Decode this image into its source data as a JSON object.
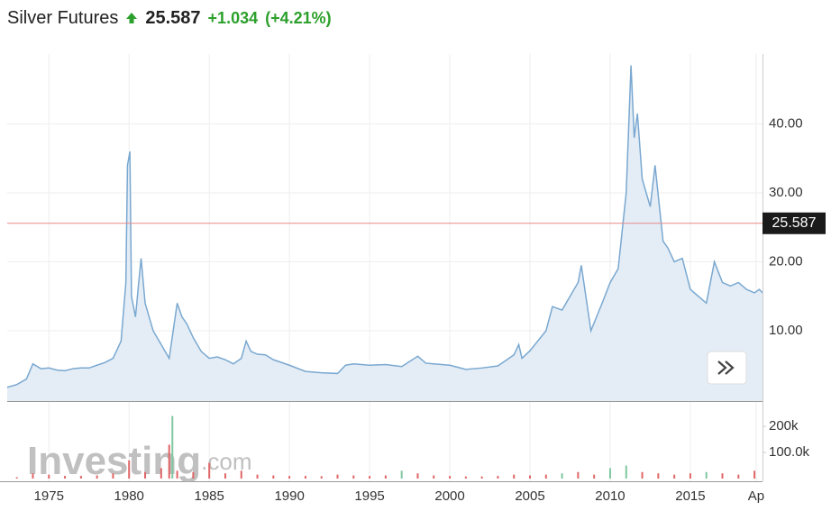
{
  "header": {
    "title": "Silver Futures",
    "price": "25.587",
    "change": "+1.034",
    "change_pct": "(+4.21%)"
  },
  "watermark": {
    "brand": "Investing",
    "suffix": ".com"
  },
  "chart_data": {
    "type": "area",
    "x": [
      1972.4,
      1973.0,
      1973.6,
      1974.0,
      1974.5,
      1975.0,
      1975.5,
      1976.0,
      1976.5,
      1977.0,
      1977.5,
      1978.0,
      1978.5,
      1979.0,
      1979.5,
      1979.8,
      1979.9,
      1980.05,
      1980.15,
      1980.4,
      1980.6,
      1980.75,
      1981.0,
      1981.5,
      1982.0,
      1982.5,
      1983.0,
      1983.3,
      1983.6,
      1984.0,
      1984.5,
      1985.0,
      1985.5,
      1986.0,
      1986.5,
      1987.0,
      1987.3,
      1987.6,
      1988.0,
      1988.5,
      1989.0,
      1990.0,
      1991.0,
      1992.0,
      1993.0,
      1993.5,
      1994.0,
      1995.0,
      1996.0,
      1997.0,
      1998.0,
      1998.5,
      1999.0,
      2000.0,
      2001.0,
      2002.0,
      2003.0,
      2004.0,
      2004.3,
      2004.5,
      2005.0,
      2006.0,
      2006.4,
      2007.0,
      2008.0,
      2008.2,
      2008.8,
      2009.5,
      2010.0,
      2010.5,
      2011.0,
      2011.3,
      2011.5,
      2011.7,
      2012.0,
      2012.5,
      2012.8,
      2013.3,
      2013.6,
      2014.0,
      2014.5,
      2015.0,
      2015.5,
      2016.0,
      2016.5,
      2017.0,
      2017.5,
      2018.0,
      2018.5,
      2019.0,
      2019.3,
      2019.5
    ],
    "values": [
      1.8,
      2.2,
      3.0,
      5.2,
      4.5,
      4.6,
      4.3,
      4.2,
      4.5,
      4.6,
      4.6,
      5.0,
      5.4,
      6.0,
      8.5,
      17,
      34,
      36,
      15,
      12,
      17,
      20.5,
      14,
      10,
      8,
      6,
      14,
      12,
      11,
      9,
      7,
      6,
      6.2,
      5.8,
      5.2,
      6,
      8.5,
      7,
      6.6,
      6.5,
      5.8,
      5.0,
      4.1,
      3.9,
      3.8,
      5.0,
      5.2,
      5.0,
      5.1,
      4.8,
      6.3,
      5.3,
      5.2,
      5.0,
      4.4,
      4.6,
      4.9,
      6.5,
      8.0,
      6.0,
      7.1,
      10,
      13.5,
      13,
      17,
      19.5,
      10,
      14,
      17,
      19,
      30,
      48.5,
      38,
      41.5,
      32,
      28,
      34,
      23,
      22,
      20,
      20.5,
      16,
      15,
      14,
      20,
      17,
      16.5,
      17,
      16,
      15.5,
      16,
      15.5
    ],
    "color": "#7aa8d0",
    "fill": "#e4edf6",
    "xlim": [
      1972.4,
      2019.5
    ],
    "xticks": [
      1975,
      1980,
      1985,
      1990,
      1995,
      2000,
      2005,
      2010,
      2015,
      {
        "value": 2019.1,
        "label": "Ap"
      }
    ],
    "ylim": [
      0,
      50
    ],
    "yticks": [
      {
        "value": 10,
        "label": "10.00"
      },
      {
        "value": 20,
        "label": "20.00"
      },
      {
        "value": 30,
        "label": "30.00"
      },
      {
        "value": 40,
        "label": "40.00"
      }
    ],
    "grid": true,
    "last": {
      "value": 25.587,
      "label": "25.587",
      "color": "#e88a8a"
    },
    "volume": {
      "ylim": [
        0,
        280000
      ],
      "yticks": [
        {
          "value": 100000,
          "label": "100.0k"
        },
        {
          "value": 200000,
          "label": "200k"
        }
      ],
      "series": [
        {
          "color": "#e06666",
          "x": [
            1973,
            1974,
            1975,
            1976,
            1977,
            1978,
            1979,
            1980,
            1981,
            1982,
            1982.5,
            1983,
            1984,
            1985,
            1986,
            1987,
            1988,
            1989,
            1990,
            1991,
            1992,
            1993,
            1994,
            1995,
            1996,
            1998,
            1999,
            2000,
            2001,
            2002,
            2003,
            2004,
            2005,
            2006,
            2008,
            2009,
            2012,
            2013,
            2014,
            2015,
            2017,
            2018,
            2019
          ],
          "values": [
            5000,
            20000,
            15000,
            10000,
            10000,
            12000,
            20000,
            70000,
            25000,
            40000,
            130000,
            30000,
            25000,
            60000,
            20000,
            30000,
            15000,
            12000,
            10000,
            10000,
            9000,
            15000,
            12000,
            10000,
            12000,
            20000,
            12000,
            10000,
            8000,
            8000,
            10000,
            15000,
            12000,
            15000,
            25000,
            15000,
            25000,
            20000,
            15000,
            20000,
            20000,
            15000,
            30000
          ]
        },
        {
          "color": "#7fc7a0",
          "x": [
            1982.7,
            1997,
            2007,
            2010,
            2011,
            2016
          ],
          "values": [
            240000,
            30000,
            20000,
            40000,
            50000,
            25000
          ]
        }
      ]
    }
  }
}
